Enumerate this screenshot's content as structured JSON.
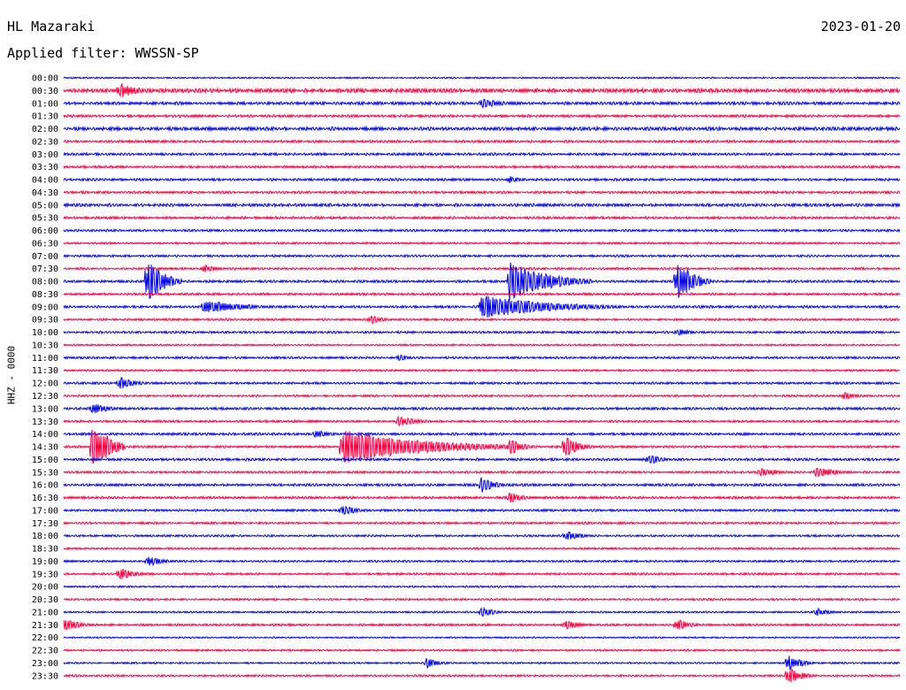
{
  "header": {
    "station": "HL Mazaraki",
    "date": "2023-01-20",
    "filter": "Applied filter: WWSSN-SP"
  },
  "channel_label": "HHZ - 0000",
  "colors": {
    "even": "#0000e6",
    "odd": "#f5003c"
  },
  "chart_data": {
    "type": "line",
    "title": "HL Mazaraki",
    "subtitle": "Applied filter: WWSSN-SP",
    "ylabel": "HHZ - 0000",
    "grid": false,
    "legend": "none",
    "tick_labels": [
      "00:00",
      "00:30",
      "01:00",
      "01:30",
      "02:00",
      "02:30",
      "03:00",
      "03:30",
      "04:00",
      "04:30",
      "05:00",
      "05:30",
      "06:00",
      "06:30",
      "07:00",
      "07:30",
      "08:00",
      "08:30",
      "09:00",
      "09:30",
      "10:00",
      "10:30",
      "11:00",
      "11:30",
      "12:00",
      "12:30",
      "13:00",
      "13:30",
      "14:00",
      "14:30",
      "15:00",
      "15:30",
      "16:00",
      "16:30",
      "17:00",
      "17:30",
      "18:00",
      "18:30",
      "19:00",
      "19:30",
      "20:00",
      "20:30",
      "21:00",
      "21:30",
      "22:00",
      "22:30",
      "23:00",
      "23:30"
    ],
    "base_noise": [
      0.6,
      1.6,
      1.2,
      1.0,
      1.4,
      1.0,
      1.0,
      1.0,
      1.0,
      1.0,
      1.2,
      1.0,
      0.9,
      0.8,
      0.9,
      0.9,
      1.0,
      0.9,
      1.0,
      0.9,
      0.9,
      0.7,
      0.9,
      0.8,
      0.9,
      0.8,
      1.0,
      0.9,
      1.0,
      0.9,
      1.0,
      0.9,
      1.0,
      1.0,
      0.9,
      0.9,
      0.8,
      0.8,
      0.8,
      0.9,
      0.7,
      0.8,
      0.7,
      0.9,
      0.6,
      0.8,
      0.7,
      0.8
    ],
    "events": [
      {
        "row": 1,
        "minute": 2,
        "amp": 9,
        "dur": 1.5
      },
      {
        "row": 2,
        "minute": 15,
        "amp": 6,
        "dur": 1.5
      },
      {
        "row": 8,
        "minute": 16,
        "amp": 4,
        "dur": 1
      },
      {
        "row": 15,
        "minute": 5,
        "amp": 5,
        "dur": 1
      },
      {
        "row": 16,
        "minute": 3,
        "amp": 28,
        "dur": 1.2
      },
      {
        "row": 16,
        "minute": 16,
        "amp": 22,
        "dur": 3
      },
      {
        "row": 16,
        "minute": 22,
        "amp": 26,
        "dur": 1.2
      },
      {
        "row": 18,
        "minute": 5,
        "amp": 8,
        "dur": 3
      },
      {
        "row": 18,
        "minute": 15,
        "amp": 14,
        "dur": 5
      },
      {
        "row": 19,
        "minute": 11,
        "amp": 5,
        "dur": 1
      },
      {
        "row": 20,
        "minute": 22,
        "amp": 5,
        "dur": 1
      },
      {
        "row": 22,
        "minute": 12,
        "amp": 4,
        "dur": 1
      },
      {
        "row": 24,
        "minute": 2,
        "amp": 7,
        "dur": 1.2
      },
      {
        "row": 25,
        "minute": 28,
        "amp": 5,
        "dur": 1
      },
      {
        "row": 26,
        "minute": 1,
        "amp": 7,
        "dur": 1.2
      },
      {
        "row": 27,
        "minute": 12,
        "amp": 6,
        "dur": 1.5
      },
      {
        "row": 28,
        "minute": 9,
        "amp": 6,
        "dur": 1
      },
      {
        "row": 29,
        "minute": 1,
        "amp": 34,
        "dur": 1.2
      },
      {
        "row": 29,
        "minute": 10,
        "amp": 20,
        "dur": 6
      },
      {
        "row": 29,
        "minute": 16,
        "amp": 10,
        "dur": 1
      },
      {
        "row": 29,
        "minute": 18,
        "amp": 14,
        "dur": 1
      },
      {
        "row": 30,
        "minute": 21,
        "amp": 6,
        "dur": 1
      },
      {
        "row": 31,
        "minute": 25,
        "amp": 5,
        "dur": 1.5
      },
      {
        "row": 31,
        "minute": 27,
        "amp": 7,
        "dur": 1.5
      },
      {
        "row": 32,
        "minute": 15,
        "amp": 9,
        "dur": 1
      },
      {
        "row": 33,
        "minute": 16,
        "amp": 6,
        "dur": 1.2
      },
      {
        "row": 34,
        "minute": 10,
        "amp": 7,
        "dur": 1
      },
      {
        "row": 36,
        "minute": 18,
        "amp": 6,
        "dur": 1.2
      },
      {
        "row": 38,
        "minute": 3,
        "amp": 6,
        "dur": 1.2
      },
      {
        "row": 39,
        "minute": 2,
        "amp": 7,
        "dur": 1.2
      },
      {
        "row": 42,
        "minute": 15,
        "amp": 6,
        "dur": 1
      },
      {
        "row": 42,
        "minute": 27,
        "amp": 5,
        "dur": 1
      },
      {
        "row": 43,
        "minute": 0,
        "amp": 7,
        "dur": 1.2
      },
      {
        "row": 43,
        "minute": 18,
        "amp": 6,
        "dur": 1
      },
      {
        "row": 43,
        "minute": 22,
        "amp": 7,
        "dur": 1
      },
      {
        "row": 46,
        "minute": 13,
        "amp": 6,
        "dur": 1
      },
      {
        "row": 46,
        "minute": 26,
        "amp": 10,
        "dur": 1
      },
      {
        "row": 47,
        "minute": 26,
        "amp": 10,
        "dur": 1
      }
    ]
  }
}
